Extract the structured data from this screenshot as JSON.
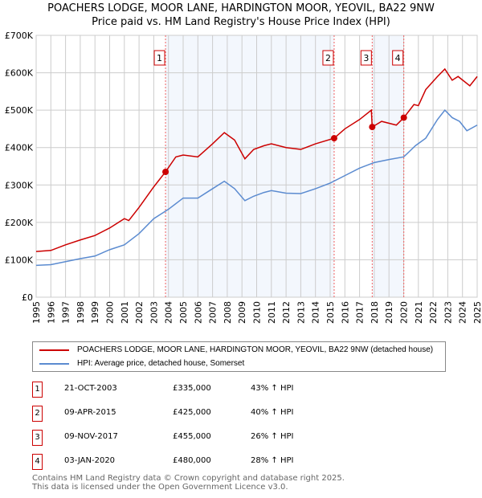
{
  "chart_data": {
    "type": "line",
    "title": "POACHERS LODGE, MOOR LANE, HARDINGTON MOOR, YEOVIL, BA22 9NW",
    "subtitle": "Price paid vs. HM Land Registry's House Price Index (HPI)",
    "xlim": [
      1995,
      2025
    ],
    "ylim": [
      0,
      700000
    ],
    "x_ticks": [
      "1995",
      "1996",
      "1997",
      "1998",
      "1999",
      "2000",
      "2001",
      "2002",
      "2003",
      "2004",
      "2005",
      "2006",
      "2007",
      "2008",
      "2009",
      "2010",
      "2011",
      "2012",
      "2013",
      "2014",
      "2015",
      "2016",
      "2017",
      "2018",
      "2019",
      "2020",
      "2021",
      "2022",
      "2023",
      "2024",
      "2025"
    ],
    "y_ticks": [
      {
        "v": 0,
        "label": "£0"
      },
      {
        "v": 100000,
        "label": "£100K"
      },
      {
        "v": 200000,
        "label": "£200K"
      },
      {
        "v": 300000,
        "label": "£300K"
      },
      {
        "v": 400000,
        "label": "£400K"
      },
      {
        "v": 500000,
        "label": "£500K"
      },
      {
        "v": 600000,
        "label": "£600K"
      },
      {
        "v": 700000,
        "label": "£700K"
      }
    ],
    "grid": true,
    "series": [
      {
        "name": "POACHERS LODGE, MOOR LANE, HARDINGTON MOOR, YEOVIL, BA22 9NW (detached house)",
        "color": "#cc0000",
        "x": [
          1995,
          1996,
          1997,
          1998,
          1999,
          2000,
          2001,
          2001.3,
          2002,
          2003,
          2003.8,
          2004.5,
          2005,
          2006,
          2007,
          2007.8,
          2008.5,
          2009.2,
          2009.8,
          2010.5,
          2011,
          2012,
          2013,
          2014,
          2015.27,
          2016,
          2017,
          2017.8,
          2017.86,
          2018.5,
          2019.5,
          2020.01,
          2020.7,
          2021,
          2021.5,
          2022.3,
          2022.8,
          2023.3,
          2023.7,
          2024.5,
          2025
        ],
        "y": [
          122000,
          125000,
          140000,
          153000,
          165000,
          185000,
          210000,
          205000,
          240000,
          295000,
          335000,
          375000,
          380000,
          375000,
          410000,
          440000,
          420000,
          370000,
          395000,
          405000,
          410000,
          400000,
          395000,
          410000,
          425000,
          450000,
          475000,
          500000,
          455000,
          470000,
          460000,
          480000,
          515000,
          512000,
          555000,
          590000,
          610000,
          580000,
          590000,
          565000,
          590000
        ]
      },
      {
        "name": "HPI: Average price, detached house, Somerset",
        "color": "#5b8bd0",
        "x": [
          1995,
          1996,
          1997,
          1998,
          1999,
          2000,
          2001,
          2002,
          2003,
          2004,
          2005,
          2006,
          2007,
          2007.8,
          2008.5,
          2009.2,
          2009.8,
          2010.5,
          2011,
          2012,
          2013,
          2014,
          2015,
          2016,
          2017,
          2018,
          2019,
          2020,
          2020.8,
          2021.5,
          2022.3,
          2022.8,
          2023.3,
          2023.8,
          2024.3,
          2025
        ],
        "y": [
          85000,
          87000,
          95000,
          103000,
          110000,
          127000,
          140000,
          170000,
          210000,
          235000,
          265000,
          265000,
          290000,
          310000,
          290000,
          258000,
          270000,
          280000,
          285000,
          278000,
          277000,
          290000,
          305000,
          325000,
          345000,
          360000,
          368000,
          375000,
          405000,
          425000,
          475000,
          500000,
          480000,
          470000,
          445000,
          460000
        ]
      }
    ],
    "sales": [
      {
        "id": "1",
        "x": 2003.8,
        "price": 335000,
        "date": "21-OCT-2003",
        "price_label": "£335,000",
        "hpi": "43% ↑ HPI"
      },
      {
        "id": "2",
        "x": 2015.27,
        "price": 425000,
        "date": "09-APR-2015",
        "price_label": "£425,000",
        "hpi": "40% ↑ HPI"
      },
      {
        "id": "3",
        "x": 2017.86,
        "price": 455000,
        "date": "09-NOV-2017",
        "price_label": "£455,000",
        "hpi": "26% ↑ HPI"
      },
      {
        "id": "4",
        "x": 2020.01,
        "price": 480000,
        "date": "03-JAN-2020",
        "price_label": "£480,000",
        "hpi": "28% ↑ HPI"
      }
    ],
    "legend": "below"
  },
  "footer": [
    "Contains HM Land Registry data © Crown copyright and database right 2025.",
    "This data is licensed under the Open Government Licence v3.0."
  ]
}
